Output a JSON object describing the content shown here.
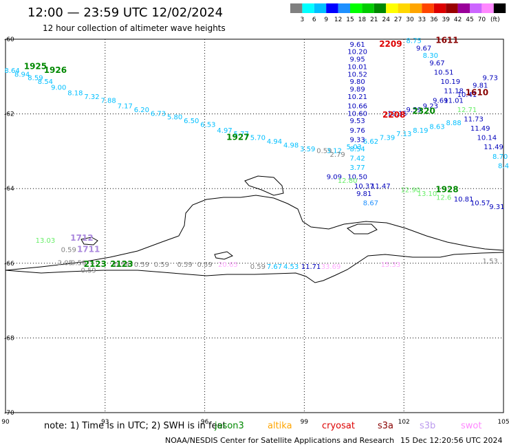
{
  "header": {
    "title": "12:00 — 23:59 UTC 12/02/2024",
    "subtitle": "12 hour collection of altimeter wave heights"
  },
  "legend": {
    "unit": "(ft)",
    "items": [
      {
        "label": "",
        "color": "#808080"
      },
      {
        "label": "3",
        "color": "#00ffff"
      },
      {
        "label": "6",
        "color": "#00bfff"
      },
      {
        "label": "9",
        "color": "#0000ff"
      },
      {
        "label": "12",
        "color": "#1e90ff"
      },
      {
        "label": "15",
        "color": "#00ff00"
      },
      {
        "label": "18",
        "color": "#00cc00"
      },
      {
        "label": "21",
        "color": "#008800"
      },
      {
        "label": "24",
        "color": "#ffff00"
      },
      {
        "label": "27",
        "color": "#ffd700"
      },
      {
        "label": "30",
        "color": "#ffa500"
      },
      {
        "label": "33",
        "color": "#ff4500"
      },
      {
        "label": "36",
        "color": "#dd0000"
      },
      {
        "label": "39",
        "color": "#990000"
      },
      {
        "label": "42",
        "color": "#990099"
      },
      {
        "label": "45",
        "color": "#cc66ff"
      },
      {
        "label": "70",
        "color": "#ff88ff"
      },
      {
        "label": "",
        "color": "#000000"
      }
    ]
  },
  "axes": {
    "lat": {
      "min": -70,
      "max": -60,
      "ticks": [
        -60,
        -62,
        -64,
        -66,
        -68,
        -70
      ]
    },
    "lon": {
      "min": 90,
      "max": 105,
      "ticks": [
        90,
        93,
        96,
        99,
        102,
        105
      ]
    }
  },
  "passes": [
    {
      "label": "1925",
      "lon": 90.9,
      "lat": -60.8,
      "color": "#008800"
    },
    {
      "label": "1926",
      "lon": 91.5,
      "lat": -60.9,
      "color": "#008800"
    },
    {
      "label": "1927",
      "lon": 97.0,
      "lat": -62.7,
      "color": "#008800"
    },
    {
      "label": "2209",
      "lon": 101.6,
      "lat": -60.2,
      "color": "#dd0000"
    },
    {
      "label": "1611",
      "lon": 103.3,
      "lat": -60.1,
      "color": "#880000"
    },
    {
      "label": "2208",
      "lon": 101.7,
      "lat": -62.1,
      "color": "#dd0000"
    },
    {
      "label": "2320",
      "lon": 102.6,
      "lat": -62.0,
      "color": "#008800"
    },
    {
      "label": "1610",
      "lon": 104.2,
      "lat": -61.5,
      "color": "#880000"
    },
    {
      "label": "1928",
      "lon": 103.3,
      "lat": -64.1,
      "color": "#008800"
    },
    {
      "label": "1712",
      "lon": 92.3,
      "lat": -65.4,
      "color": "#aa88dd"
    },
    {
      "label": "1711",
      "lon": 92.5,
      "lat": -65.7,
      "color": "#aa88dd"
    },
    {
      "label": "2123",
      "lon": 92.7,
      "lat": -66.1,
      "color": "#008800"
    },
    {
      "label": "2123",
      "lon": 93.5,
      "lat": -66.1,
      "color": "#008800"
    }
  ],
  "observations": [
    {
      "v": "8.64",
      "lon": 90.2,
      "lat": -60.9,
      "c": "#00bfff"
    },
    {
      "v": "8.94",
      "lon": 90.5,
      "lat": -61.0,
      "c": "#00bfff"
    },
    {
      "v": "8.59",
      "lon": 90.9,
      "lat": -61.1,
      "c": "#00bfff"
    },
    {
      "v": "8.54",
      "lon": 91.2,
      "lat": -61.2,
      "c": "#00bfff"
    },
    {
      "v": "9.00",
      "lon": 91.6,
      "lat": -61.35,
      "c": "#00bfff"
    },
    {
      "v": "8.18",
      "lon": 92.1,
      "lat": -61.5,
      "c": "#00bfff"
    },
    {
      "v": "7.32",
      "lon": 92.6,
      "lat": -61.6,
      "c": "#00bfff"
    },
    {
      "v": "7.88",
      "lon": 93.1,
      "lat": -61.7,
      "c": "#00bfff"
    },
    {
      "v": "7.17",
      "lon": 93.6,
      "lat": -61.85,
      "c": "#00bfff"
    },
    {
      "v": "6.20",
      "lon": 94.1,
      "lat": -61.95,
      "c": "#00bfff"
    },
    {
      "v": "6.73",
      "lon": 94.6,
      "lat": -62.05,
      "c": "#00bfff"
    },
    {
      "v": "5.80",
      "lon": 95.1,
      "lat": -62.15,
      "c": "#00bfff"
    },
    {
      "v": "6.50",
      "lon": 95.6,
      "lat": -62.25,
      "c": "#00bfff"
    },
    {
      "v": "6.53",
      "lon": 96.1,
      "lat": -62.35,
      "c": "#00bfff"
    },
    {
      "v": "4.97",
      "lon": 96.6,
      "lat": -62.5,
      "c": "#00bfff"
    },
    {
      "v": "5.77",
      "lon": 97.1,
      "lat": -62.6,
      "c": "#00bfff"
    },
    {
      "v": "5.70",
      "lon": 97.6,
      "lat": -62.7,
      "c": "#00bfff"
    },
    {
      "v": "4.94",
      "lon": 98.1,
      "lat": -62.8,
      "c": "#00bfff"
    },
    {
      "v": "4.98",
      "lon": 98.6,
      "lat": -62.9,
      "c": "#00bfff"
    },
    {
      "v": "3.59",
      "lon": 99.1,
      "lat": -63.0,
      "c": "#00bfff"
    },
    {
      "v": "0.59",
      "lon": 99.6,
      "lat": -63.05,
      "c": "#808080"
    },
    {
      "v": "3.12",
      "lon": 99.9,
      "lat": -63.05,
      "c": "#00bfff"
    },
    {
      "v": "2.79",
      "lon": 100.0,
      "lat": -63.15,
      "c": "#808080"
    },
    {
      "v": "5.03",
      "lon": 100.5,
      "lat": -62.95,
      "c": "#00bfff"
    },
    {
      "v": "6.62",
      "lon": 101.0,
      "lat": -62.8,
      "c": "#00bfff"
    },
    {
      "v": "7.39",
      "lon": 101.5,
      "lat": -62.7,
      "c": "#00bfff"
    },
    {
      "v": "7.13",
      "lon": 102.0,
      "lat": -62.6,
      "c": "#00bfff"
    },
    {
      "v": "8.19",
      "lon": 102.5,
      "lat": -62.5,
      "c": "#00bfff"
    },
    {
      "v": "8.63",
      "lon": 103.0,
      "lat": -62.4,
      "c": "#00bfff"
    },
    {
      "v": "8.88",
      "lon": 103.5,
      "lat": -62.3,
      "c": "#00bfff"
    },
    {
      "v": "9.61",
      "lon": 100.6,
      "lat": -60.2,
      "c": "#0000bb"
    },
    {
      "v": "10.20",
      "lon": 100.6,
      "lat": -60.4,
      "c": "#0000bb"
    },
    {
      "v": "9.95",
      "lon": 100.6,
      "lat": -60.6,
      "c": "#0000bb"
    },
    {
      "v": "10.01",
      "lon": 100.6,
      "lat": -60.8,
      "c": "#0000bb"
    },
    {
      "v": "10.52",
      "lon": 100.6,
      "lat": -61.0,
      "c": "#0000bb"
    },
    {
      "v": "9.80",
      "lon": 100.6,
      "lat": -61.2,
      "c": "#0000bb"
    },
    {
      "v": "9.89",
      "lon": 100.6,
      "lat": -61.4,
      "c": "#0000bb"
    },
    {
      "v": "10.21",
      "lon": 100.6,
      "lat": -61.6,
      "c": "#0000bb"
    },
    {
      "v": "10.66",
      "lon": 100.6,
      "lat": -61.85,
      "c": "#0000bb"
    },
    {
      "v": "10.60",
      "lon": 100.6,
      "lat": -62.05,
      "c": "#0000bb"
    },
    {
      "v": "9.53",
      "lon": 100.6,
      "lat": -62.25,
      "c": "#0000bb"
    },
    {
      "v": "9.76",
      "lon": 100.6,
      "lat": -62.5,
      "c": "#0000bb"
    },
    {
      "v": "9.33",
      "lon": 100.6,
      "lat": -62.75,
      "c": "#0000bb"
    },
    {
      "v": "8.54",
      "lon": 100.6,
      "lat": -63.0,
      "c": "#00bfff"
    },
    {
      "v": "7.42",
      "lon": 100.6,
      "lat": -63.25,
      "c": "#00bfff"
    },
    {
      "v": "3.77",
      "lon": 100.6,
      "lat": -63.5,
      "c": "#00bfff"
    },
    {
      "v": "10.50",
      "lon": 100.6,
      "lat": -63.75,
      "c": "#0000bb"
    },
    {
      "v": "9.09",
      "lon": 99.9,
      "lat": -63.75,
      "c": "#0000bb"
    },
    {
      "v": "12.80",
      "lon": 100.3,
      "lat": -63.85,
      "c": "#66ee66"
    },
    {
      "v": "10.37",
      "lon": 100.8,
      "lat": -64.0,
      "c": "#0000bb"
    },
    {
      "v": "11.47",
      "lon": 101.3,
      "lat": -64.0,
      "c": "#0000bb"
    },
    {
      "v": "9.81",
      "lon": 100.8,
      "lat": -64.2,
      "c": "#0000bb"
    },
    {
      "v": "8.67",
      "lon": 101.0,
      "lat": -64.45,
      "c": "#1e90ff"
    },
    {
      "v": "8.75",
      "lon": 102.3,
      "lat": -60.1,
      "c": "#00bfff"
    },
    {
      "v": "9.67",
      "lon": 102.6,
      "lat": -60.3,
      "c": "#0000bb"
    },
    {
      "v": "8.30",
      "lon": 102.8,
      "lat": -60.5,
      "c": "#00bfff"
    },
    {
      "v": "9.67",
      "lon": 103.0,
      "lat": -60.7,
      "c": "#0000bb"
    },
    {
      "v": "10.51",
      "lon": 103.2,
      "lat": -60.95,
      "c": "#0000bb"
    },
    {
      "v": "10.19",
      "lon": 103.4,
      "lat": -61.2,
      "c": "#0000bb"
    },
    {
      "v": "11.18",
      "lon": 103.5,
      "lat": -61.45,
      "c": "#0000bb"
    },
    {
      "v": "11.01",
      "lon": 103.5,
      "lat": -61.7,
      "c": "#0000bb"
    },
    {
      "v": "10.41",
      "lon": 103.9,
      "lat": -61.55,
      "c": "#0000bb"
    },
    {
      "v": "9.81",
      "lon": 104.3,
      "lat": -61.3,
      "c": "#0000bb"
    },
    {
      "v": "9.73",
      "lon": 104.6,
      "lat": -61.1,
      "c": "#0000bb"
    },
    {
      "v": "9.69",
      "lon": 103.1,
      "lat": -61.7,
      "c": "#0000bb"
    },
    {
      "v": "9.23",
      "lon": 102.8,
      "lat": -61.85,
      "c": "#0000bb"
    },
    {
      "v": "9.59",
      "lon": 102.3,
      "lat": -61.95,
      "c": "#0000bb"
    },
    {
      "v": "10.15",
      "lon": 101.8,
      "lat": -62.05,
      "c": "#0000bb"
    },
    {
      "v": "12.71",
      "lon": 103.9,
      "lat": -61.95,
      "c": "#66ee66"
    },
    {
      "v": "11.73",
      "lon": 104.1,
      "lat": -62.2,
      "c": "#0000bb"
    },
    {
      "v": "11.49",
      "lon": 104.3,
      "lat": -62.45,
      "c": "#0000bb"
    },
    {
      "v": "10.14",
      "lon": 104.5,
      "lat": -62.7,
      "c": "#0000bb"
    },
    {
      "v": "11.49",
      "lon": 104.7,
      "lat": -62.95,
      "c": "#0000bb"
    },
    {
      "v": "8.70",
      "lon": 104.9,
      "lat": -63.2,
      "c": "#00bfff"
    },
    {
      "v": "8.4",
      "lon": 105.0,
      "lat": -63.45,
      "c": "#00bfff"
    },
    {
      "v": "12.90",
      "lon": 102.2,
      "lat": -64.1,
      "c": "#66ee66"
    },
    {
      "v": "13.10",
      "lon": 102.7,
      "lat": -64.2,
      "c": "#66ee66"
    },
    {
      "v": "12.6",
      "lon": 103.2,
      "lat": -64.3,
      "c": "#66ee66"
    },
    {
      "v": "10.81",
      "lon": 103.8,
      "lat": -64.35,
      "c": "#0000bb"
    },
    {
      "v": "10.57",
      "lon": 104.3,
      "lat": -64.45,
      "c": "#0000bb"
    },
    {
      "v": "9.31",
      "lon": 104.8,
      "lat": -64.55,
      "c": "#0000bb"
    },
    {
      "v": "13.03",
      "lon": 91.2,
      "lat": -65.45,
      "c": "#66ee66"
    },
    {
      "v": "0.59",
      "lon": 91.9,
      "lat": -65.7,
      "c": "#808080"
    },
    {
      "v": "2.05",
      "lon": 91.8,
      "lat": -66.05,
      "c": "#808080"
    },
    {
      "v": "0.59",
      "lon": 92.2,
      "lat": -66.05,
      "c": "#808080"
    },
    {
      "v": "0.59",
      "lon": 92.5,
      "lat": -66.25,
      "c": "#808080"
    },
    {
      "v": "0.59",
      "lon": 93.5,
      "lat": -66.1,
      "c": "#808080"
    },
    {
      "v": "0.59",
      "lon": 94.1,
      "lat": -66.1,
      "c": "#808080"
    },
    {
      "v": "0.59",
      "lon": 94.7,
      "lat": -66.1,
      "c": "#808080"
    },
    {
      "v": "0.59",
      "lon": 95.4,
      "lat": -66.1,
      "c": "#808080"
    },
    {
      "v": "0.59",
      "lon": 96.0,
      "lat": -66.1,
      "c": "#808080"
    },
    {
      "v": "20.65",
      "lon": 96.7,
      "lat": -66.1,
      "c": "#ffaaff"
    },
    {
      "v": "0.59",
      "lon": 97.6,
      "lat": -66.15,
      "c": "#808080"
    },
    {
      "v": "7.67",
      "lon": 98.1,
      "lat": -66.15,
      "c": "#00bfff"
    },
    {
      "v": "4.53",
      "lon": 98.6,
      "lat": -66.15,
      "c": "#00bfff"
    },
    {
      "v": "11.71",
      "lon": 99.2,
      "lat": -66.15,
      "c": "#0000bb"
    },
    {
      "v": "33.69",
      "lon": 99.8,
      "lat": -66.15,
      "c": "#ffaaff"
    },
    {
      "v": "15.33",
      "lon": 101.6,
      "lat": -66.1,
      "c": "#ffaaff"
    },
    {
      "v": "1.53",
      "lon": 104.6,
      "lat": -66.0,
      "c": "#808080"
    }
  ],
  "footer": {
    "note": "note:  1) Time is in UTC;  2) SWH is in feet",
    "satellites": [
      {
        "name": "jason3",
        "color": "#008800"
      },
      {
        "name": "altika",
        "color": "#ffa500"
      },
      {
        "name": "cryosat",
        "color": "#dd0000"
      },
      {
        "name": "s3a",
        "color": "#880000"
      },
      {
        "name": "s3b",
        "color": "#bb99ee"
      },
      {
        "name": "swot",
        "color": "#ff88ff"
      }
    ],
    "credit": "NOAA/NESDIS Center for Satellite Applications and Research",
    "timestamp": "15 Dec 12:20:56 UTC 2024"
  }
}
